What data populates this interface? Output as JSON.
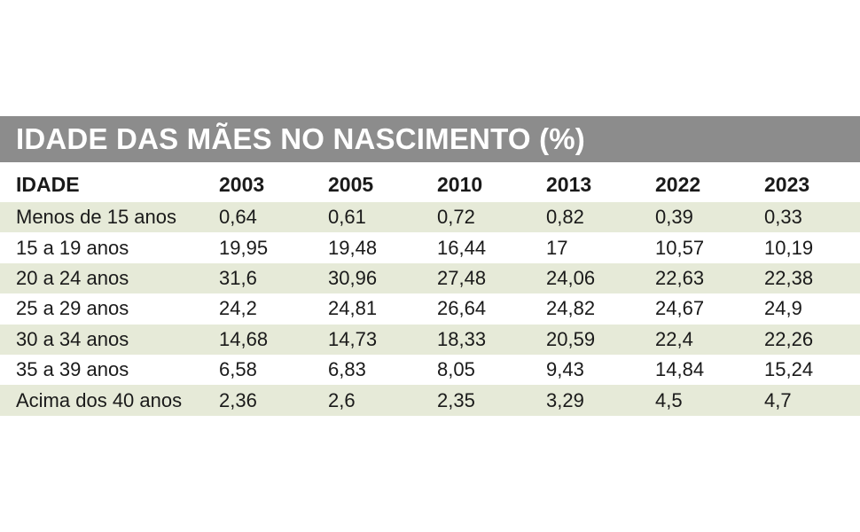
{
  "chart_data": {
    "type": "table",
    "title": "IDADE DAS MÃES NO NASCIMENTO (%)",
    "columns": [
      "IDADE",
      "2003",
      "2005",
      "2010",
      "2013",
      "2022",
      "2023"
    ],
    "rows": [
      {
        "label": "Menos de 15 anos",
        "values": [
          "0,64",
          "0,61",
          "0,72",
          "0,82",
          "0,39",
          "0,33"
        ]
      },
      {
        "label": "15 a 19 anos",
        "values": [
          "19,95",
          "19,48",
          "16,44",
          "17",
          "10,57",
          "10,19"
        ]
      },
      {
        "label": "20 a 24 anos",
        "values": [
          "31,6",
          "30,96",
          "27,48",
          "24,06",
          "22,63",
          "22,38"
        ]
      },
      {
        "label": "25 a 29 anos",
        "values": [
          "24,2",
          "24,81",
          "26,64",
          "24,82",
          "24,67",
          "24,9"
        ]
      },
      {
        "label": "30 a 34 anos",
        "values": [
          "14,68",
          "14,73",
          "18,33",
          "20,59",
          "22,4",
          "22,26"
        ]
      },
      {
        "label": "35 a 39 anos",
        "values": [
          "6,58",
          "6,83",
          "8,05",
          "9,43",
          "14,84",
          "15,24"
        ]
      },
      {
        "label": "Acima dos 40 anos",
        "values": [
          "2,36",
          "2,6",
          "2,35",
          "3,29",
          "4,5",
          "4,7"
        ]
      }
    ]
  },
  "colors": {
    "title_bar": "#8c8c8c",
    "row_shade": "#e6ead8",
    "text": "#1a1a1a"
  }
}
